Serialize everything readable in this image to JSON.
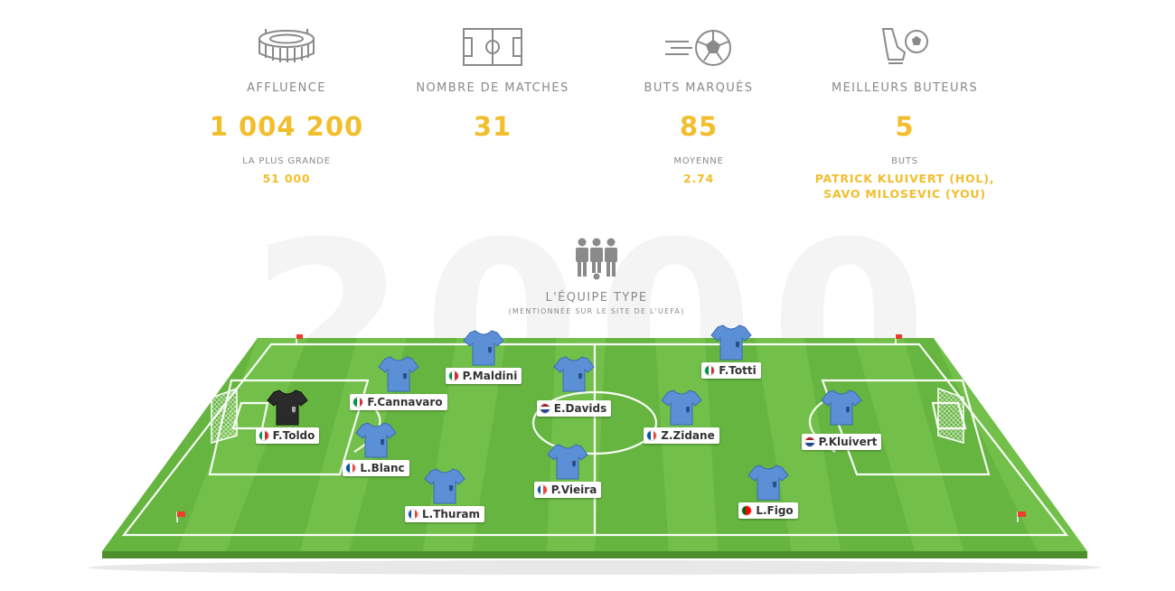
{
  "stats": [
    {
      "icon": "stadium-icon",
      "label": "AFFLUENCE",
      "value": "1 004 200",
      "sub_label": "LA PLUS GRANDE",
      "sub_value": "51 000"
    },
    {
      "icon": "pitch-icon",
      "label": "NOMBRE DE MATCHES",
      "value": "31",
      "sub_label": "",
      "sub_value": ""
    },
    {
      "icon": "ball-icon",
      "label": "BUTS MARQUÉS",
      "value": "85",
      "sub_label": "MOYENNE",
      "sub_value": "2.74"
    },
    {
      "icon": "boot-ball-icon",
      "label": "MEILLEURS BUTEURS",
      "value": "5",
      "sub_label": "BUTS",
      "sub_value": "PATRICK KLUIVERT (HOL),",
      "sub_value2": "SAVO MILOSEVIC (YOU)"
    }
  ],
  "background_year": "2000",
  "team": {
    "title": "L'ÉQUIPE TYPE",
    "subtitle": "(MENTIONNÉE SUR LE SITE DE L'UEFA)"
  },
  "colors": {
    "accent": "#f2be2c",
    "grass_light": "#72c04a",
    "grass_dark": "#5fae3a",
    "shirt": "#5b8fd6",
    "keeper_shirt": "#2a2a2a"
  },
  "players": [
    {
      "name": "F.Toldo",
      "flag": "italy",
      "keeper": true
    },
    {
      "name": "F.Cannavaro",
      "flag": "italy",
      "keeper": false
    },
    {
      "name": "L.Blanc",
      "flag": "france",
      "keeper": false
    },
    {
      "name": "P.Maldini",
      "flag": "italy",
      "keeper": false
    },
    {
      "name": "L.Thuram",
      "flag": "france",
      "keeper": false
    },
    {
      "name": "E.Davids",
      "flag": "netherlands",
      "keeper": false
    },
    {
      "name": "P.Vieira",
      "flag": "france",
      "keeper": false
    },
    {
      "name": "Z.Zidane",
      "flag": "france",
      "keeper": false
    },
    {
      "name": "F.Totti",
      "flag": "italy",
      "keeper": false
    },
    {
      "name": "P.Kluivert",
      "flag": "netherlands",
      "keeper": false
    },
    {
      "name": "L.Figo",
      "flag": "portugal",
      "keeper": false
    }
  ]
}
